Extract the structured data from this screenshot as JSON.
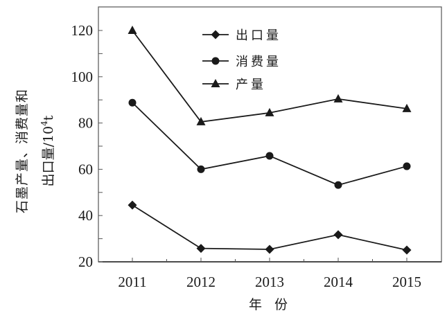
{
  "chart_data": {
    "type": "line",
    "title": "",
    "xlabel": "年 份",
    "ylabel_line1": "石墨产量、消费量和",
    "ylabel_line2": "出口量/10",
    "ylabel_sup": "4",
    "ylabel_unit": "t",
    "ylabel": "石墨产量、消费量和出口量/10^4t",
    "categories": [
      "2011",
      "2012",
      "2013",
      "2014",
      "2015"
    ],
    "ylim": [
      20,
      130
    ],
    "yticks": [
      "20",
      "40",
      "60",
      "80",
      "100",
      "120"
    ],
    "grid": false,
    "legend_position": "upper-center",
    "series": [
      {
        "name": "出口量",
        "marker": "diamond",
        "values": [
          44.5,
          25.8,
          25.4,
          31.7,
          25.1
        ]
      },
      {
        "name": "消费量",
        "marker": "circle",
        "values": [
          88.8,
          60.0,
          65.8,
          53.2,
          61.3
        ]
      },
      {
        "name": "产量",
        "marker": "triangle",
        "values": [
          120.0,
          80.5,
          84.4,
          90.4,
          86.2
        ]
      }
    ],
    "colors": {
      "line": "#1a1a1a",
      "frame": "#555555"
    }
  }
}
